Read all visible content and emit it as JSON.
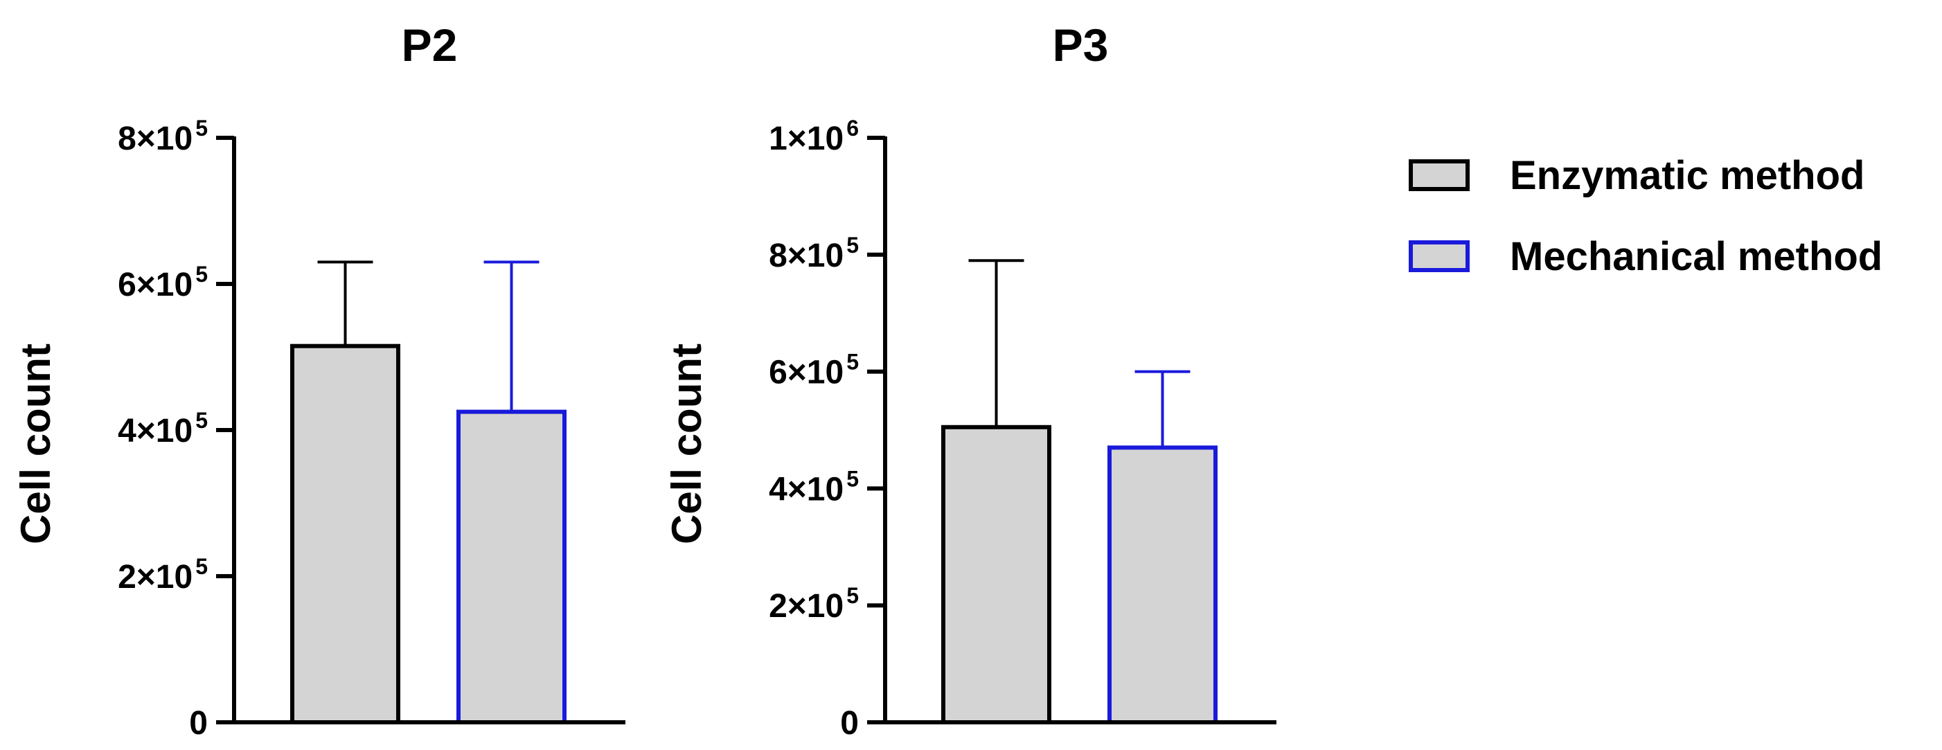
{
  "chart_data": [
    {
      "type": "bar",
      "title": "P2",
      "ylabel": "Cell count",
      "xlabel": "",
      "categories": [
        "Enzymatic method",
        "Mechanical method"
      ],
      "values": [
        515000,
        425000
      ],
      "error_upper": [
        630000,
        630000
      ],
      "ylim": [
        0,
        800000
      ],
      "yticks": [
        {
          "value": 0,
          "base": "0",
          "exp": ""
        },
        {
          "value": 200000,
          "base": "2×10",
          "exp": "5"
        },
        {
          "value": 400000,
          "base": "4×10",
          "exp": "5"
        },
        {
          "value": 600000,
          "base": "6×10",
          "exp": "5"
        },
        {
          "value": 800000,
          "base": "8×10",
          "exp": "5"
        }
      ]
    },
    {
      "type": "bar",
      "title": "P3",
      "ylabel": "Cell count",
      "xlabel": "",
      "categories": [
        "Enzymatic method",
        "Mechanical method"
      ],
      "values": [
        505000,
        470000
      ],
      "error_upper": [
        790000,
        600000
      ],
      "ylim": [
        0,
        1000000
      ],
      "yticks": [
        {
          "value": 0,
          "base": "0",
          "exp": ""
        },
        {
          "value": 200000,
          "base": "2×10",
          "exp": "5"
        },
        {
          "value": 400000,
          "base": "4×10",
          "exp": "5"
        },
        {
          "value": 600000,
          "base": "6×10",
          "exp": "5"
        },
        {
          "value": 800000,
          "base": "8×10",
          "exp": "5"
        },
        {
          "value": 1000000,
          "base": "1×10",
          "exp": "6"
        }
      ]
    }
  ],
  "legend": {
    "placement": "top-right",
    "items": [
      {
        "label": "Enzymatic method",
        "fill": "#d4d4d4",
        "stroke": "#000000"
      },
      {
        "label": "Mechanical method",
        "fill": "#d4d4d4",
        "stroke": "#1a1adb"
      }
    ]
  },
  "colors": {
    "bar_fill": "#d4d4d4",
    "series_strokes": [
      "#000000",
      "#1a1adb"
    ],
    "axis": "#000000"
  }
}
